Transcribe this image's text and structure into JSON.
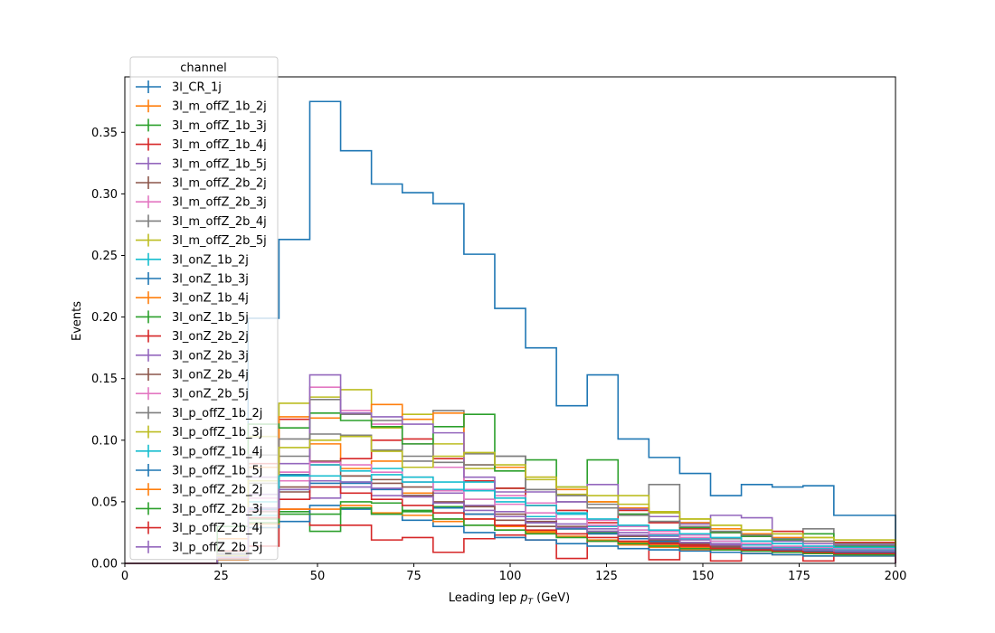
{
  "chart_data": {
    "type": "step-histogram",
    "xlabel_prefix": "Leading lep ",
    "xlabel_symbol": "p",
    "xlabel_sub": "T",
    "xlabel_suffix": " (GeV)",
    "ylabel": "Events",
    "xlim": [
      0,
      200
    ],
    "ylim": [
      0,
      0.395
    ],
    "xticks": [
      "0",
      "25",
      "50",
      "75",
      "100",
      "125",
      "150",
      "175",
      "200"
    ],
    "yticks": [
      "0.00",
      "0.05",
      "0.10",
      "0.15",
      "0.20",
      "0.25",
      "0.30",
      "0.35"
    ],
    "legend_title": "channel",
    "legend_location": "upper-left",
    "bin_edges": [
      0,
      8,
      16,
      24,
      32,
      40,
      48,
      56,
      64,
      72,
      80,
      88,
      96,
      104,
      112,
      120,
      128,
      136,
      144,
      152,
      160,
      168,
      176,
      184,
      192,
      200
    ],
    "series": [
      {
        "name": "3l_CR_1j",
        "color": "#1f77b4",
        "values": [
          0,
          0,
          0,
          0.005,
          0.199,
          0.263,
          0.375,
          0.335,
          0.308,
          0.301,
          0.292,
          0.251,
          0.207,
          0.175,
          0.128,
          0.153,
          0.101,
          0.086,
          0.073,
          0.055,
          0.064,
          0.062,
          0.063,
          0.039,
          0.039
        ]
      },
      {
        "name": "3l_m_offZ_1b_2j",
        "color": "#ff7f0e",
        "values": [
          0,
          0,
          0,
          0.003,
          0.029,
          0.072,
          0.097,
          0.077,
          0.083,
          0.057,
          0.036,
          0.031,
          0.027,
          0.026,
          0.024,
          0.018,
          0.015,
          0.013,
          0.011,
          0.009,
          0.008,
          0.007,
          0.006,
          0.006,
          0.006
        ]
      },
      {
        "name": "3l_m_offZ_1b_3j",
        "color": "#2ca02c",
        "values": [
          0,
          0,
          0,
          0.01,
          0.036,
          0.042,
          0.026,
          0.05,
          0.049,
          0.043,
          0.046,
          0.052,
          0.061,
          0.03,
          0.028,
          0.025,
          0.022,
          0.019,
          0.016,
          0.013,
          0.011,
          0.01,
          0.008,
          0.007,
          0.007
        ]
      },
      {
        "name": "3l_m_offZ_1b_4j",
        "color": "#d62728",
        "values": [
          0,
          0,
          0,
          0.01,
          0.081,
          0.117,
          0.08,
          0.085,
          0.1,
          0.101,
          0.085,
          0.067,
          0.061,
          0.047,
          0.043,
          0.033,
          0.043,
          0.033,
          0.028,
          0.025,
          0.022,
          0.02,
          0.018,
          0.017,
          0.017
        ]
      },
      {
        "name": "3l_m_offZ_1b_5j",
        "color": "#9467bd",
        "values": [
          0,
          0,
          0,
          0.007,
          0.056,
          0.074,
          0.053,
          0.062,
          0.055,
          0.07,
          0.057,
          0.047,
          0.042,
          0.036,
          0.032,
          0.028,
          0.025,
          0.022,
          0.019,
          0.016,
          0.015,
          0.013,
          0.011,
          0.01,
          0.01
        ]
      },
      {
        "name": "3l_m_offZ_2b_2j",
        "color": "#8c564b",
        "values": [
          0,
          0,
          0,
          0.004,
          0.044,
          0.062,
          0.083,
          0.071,
          0.068,
          0.062,
          0.049,
          0.04,
          0.035,
          0.03,
          0.028,
          0.024,
          0.02,
          0.017,
          0.015,
          0.013,
          0.011,
          0.01,
          0.009,
          0.008,
          0.008
        ]
      },
      {
        "name": "3l_m_offZ_2b_3j",
        "color": "#e377c2",
        "values": [
          0,
          0,
          0,
          0.006,
          0.043,
          0.074,
          0.143,
          0.124,
          0.113,
          0.097,
          0.078,
          0.06,
          0.055,
          0.049,
          0.04,
          0.035,
          0.03,
          0.026,
          0.023,
          0.02,
          0.018,
          0.016,
          0.014,
          0.013,
          0.013
        ]
      },
      {
        "name": "3l_m_offZ_2b_4j",
        "color": "#7f7f7f",
        "values": [
          0,
          0,
          0,
          0.007,
          0.065,
          0.087,
          0.133,
          0.121,
          0.116,
          0.087,
          0.124,
          0.089,
          0.087,
          0.06,
          0.05,
          0.048,
          0.04,
          0.064,
          0.033,
          0.02,
          0.018,
          0.016,
          0.028,
          0.015,
          0.015
        ]
      },
      {
        "name": "3l_m_offZ_2b_5j",
        "color": "#bcbd22",
        "values": [
          0,
          0,
          0,
          0.005,
          0.103,
          0.13,
          0.135,
          0.141,
          0.11,
          0.121,
          0.097,
          0.077,
          0.078,
          0.068,
          0.056,
          0.05,
          0.055,
          0.041,
          0.036,
          0.031,
          0.027,
          0.024,
          0.021,
          0.019,
          0.019
        ]
      },
      {
        "name": "3l_onZ_1b_2j",
        "color": "#17becf",
        "values": [
          0,
          0,
          0,
          0.006,
          0.05,
          0.06,
          0.08,
          0.075,
          0.077,
          0.07,
          0.06,
          0.066,
          0.05,
          0.038,
          0.04,
          0.03,
          0.027,
          0.023,
          0.02,
          0.018,
          0.015,
          0.013,
          0.012,
          0.011,
          0.011
        ]
      },
      {
        "name": "3l_onZ_1b_3j",
        "color": "#1f77b4",
        "values": [
          0,
          0,
          0,
          0.004,
          0.044,
          0.072,
          0.065,
          0.065,
          0.06,
          0.055,
          0.045,
          0.04,
          0.038,
          0.033,
          0.028,
          0.024,
          0.02,
          0.018,
          0.016,
          0.014,
          0.012,
          0.011,
          0.01,
          0.009,
          0.009
        ]
      },
      {
        "name": "3l_onZ_1b_4j",
        "color": "#ff7f0e",
        "values": [
          0,
          0,
          0,
          0.02,
          0.078,
          0.119,
          0.118,
          0.122,
          0.129,
          0.117,
          0.122,
          0.08,
          0.078,
          0.07,
          0.06,
          0.05,
          0.045,
          0.038,
          0.033,
          0.028,
          0.024,
          0.021,
          0.018,
          0.016,
          0.016
        ]
      },
      {
        "name": "3l_onZ_1b_5j",
        "color": "#2ca02c",
        "values": [
          0,
          0,
          0,
          0.03,
          0.113,
          0.11,
          0.122,
          0.116,
          0.111,
          0.097,
          0.111,
          0.121,
          0.075,
          0.084,
          0.062,
          0.084,
          0.04,
          0.034,
          0.029,
          0.025,
          0.022,
          0.019,
          0.024,
          0.014,
          0.014
        ]
      },
      {
        "name": "3l_onZ_2b_2j",
        "color": "#d62728",
        "values": [
          0,
          0,
          0,
          0.004,
          0.014,
          0.044,
          0.031,
          0.031,
          0.019,
          0.021,
          0.009,
          0.02,
          0.023,
          0.019,
          0.004,
          0.018,
          0.016,
          0.003,
          0.015,
          0.002,
          0.013,
          0.026,
          0.002,
          0.012,
          0.012
        ]
      },
      {
        "name": "3l_onZ_2b_3j",
        "color": "#9467bd",
        "values": [
          0,
          0,
          0,
          0.008,
          0.07,
          0.081,
          0.153,
          0.122,
          0.119,
          0.113,
          0.106,
          0.07,
          0.058,
          0.058,
          0.05,
          0.064,
          0.044,
          0.038,
          0.032,
          0.039,
          0.037,
          0.018,
          0.016,
          0.015,
          0.015
        ]
      },
      {
        "name": "3l_onZ_2b_4j",
        "color": "#8c564b",
        "values": [
          0,
          0,
          0,
          0.005,
          0.042,
          0.058,
          0.062,
          0.071,
          0.065,
          0.055,
          0.05,
          0.046,
          0.04,
          0.034,
          0.03,
          0.026,
          0.022,
          0.019,
          0.016,
          0.014,
          0.013,
          0.012,
          0.011,
          0.01,
          0.01
        ]
      },
      {
        "name": "3l_onZ_2b_5j",
        "color": "#e377c2",
        "values": [
          0,
          0,
          0,
          0.006,
          0.053,
          0.067,
          0.082,
          0.08,
          0.074,
          0.066,
          0.059,
          0.052,
          0.048,
          0.041,
          0.036,
          0.031,
          0.027,
          0.024,
          0.021,
          0.018,
          0.016,
          0.014,
          0.013,
          0.012,
          0.012
        ]
      },
      {
        "name": "3l_p_offZ_1b_2j",
        "color": "#7f7f7f",
        "values": [
          0,
          0,
          0,
          0.008,
          0.088,
          0.101,
          0.105,
          0.104,
          0.092,
          0.083,
          0.082,
          0.08,
          0.087,
          0.06,
          0.055,
          0.045,
          0.039,
          0.034,
          0.03,
          0.026,
          0.023,
          0.02,
          0.018,
          0.016,
          0.016
        ]
      },
      {
        "name": "3l_p_offZ_1b_3j",
        "color": "#bcbd22",
        "values": [
          0,
          0,
          0,
          0.006,
          0.067,
          0.094,
          0.1,
          0.103,
          0.091,
          0.078,
          0.087,
          0.09,
          0.08,
          0.07,
          0.062,
          0.055,
          0.048,
          0.042,
          0.036,
          0.031,
          0.027,
          0.024,
          0.021,
          0.019,
          0.019
        ]
      },
      {
        "name": "3l_p_offZ_1b_4j",
        "color": "#17becf",
        "values": [
          0,
          0,
          0,
          0.005,
          0.039,
          0.071,
          0.071,
          0.066,
          0.072,
          0.066,
          0.066,
          0.059,
          0.053,
          0.047,
          0.041,
          0.036,
          0.031,
          0.027,
          0.024,
          0.021,
          0.018,
          0.016,
          0.014,
          0.013,
          0.013
        ]
      },
      {
        "name": "3l_p_offZ_1b_5j",
        "color": "#1f77b4",
        "values": [
          0,
          0,
          0,
          0.003,
          0.029,
          0.034,
          0.047,
          0.044,
          0.04,
          0.035,
          0.03,
          0.025,
          0.021,
          0.019,
          0.016,
          0.014,
          0.012,
          0.011,
          0.01,
          0.009,
          0.008,
          0.007,
          0.006,
          0.006,
          0.006
        ]
      },
      {
        "name": "3l_p_offZ_2b_2j",
        "color": "#ff7f0e",
        "values": [
          0,
          0,
          0,
          0.003,
          0.032,
          0.044,
          0.044,
          0.047,
          0.041,
          0.039,
          0.034,
          0.036,
          0.03,
          0.025,
          0.022,
          0.019,
          0.017,
          0.015,
          0.013,
          0.011,
          0.01,
          0.009,
          0.008,
          0.007,
          0.007
        ]
      },
      {
        "name": "3l_p_offZ_2b_3j",
        "color": "#2ca02c",
        "values": [
          0,
          0,
          0,
          0.004,
          0.033,
          0.04,
          0.04,
          0.045,
          0.04,
          0.042,
          0.036,
          0.031,
          0.027,
          0.024,
          0.021,
          0.018,
          0.016,
          0.014,
          0.012,
          0.011,
          0.01,
          0.009,
          0.008,
          0.007,
          0.007
        ]
      },
      {
        "name": "3l_p_offZ_2b_4j",
        "color": "#d62728",
        "values": [
          0,
          0,
          0,
          0.004,
          0.037,
          0.052,
          0.062,
          0.057,
          0.052,
          0.047,
          0.041,
          0.036,
          0.031,
          0.027,
          0.024,
          0.021,
          0.018,
          0.016,
          0.014,
          0.012,
          0.011,
          0.01,
          0.009,
          0.008,
          0.008
        ]
      },
      {
        "name": "3l_p_offZ_2b_5j",
        "color": "#9467bd",
        "values": [
          0,
          0,
          0,
          0.005,
          0.045,
          0.06,
          0.067,
          0.066,
          0.061,
          0.054,
          0.049,
          0.043,
          0.038,
          0.033,
          0.029,
          0.026,
          0.023,
          0.02,
          0.017,
          0.015,
          0.013,
          0.012,
          0.011,
          0.01,
          0.01
        ]
      }
    ]
  }
}
